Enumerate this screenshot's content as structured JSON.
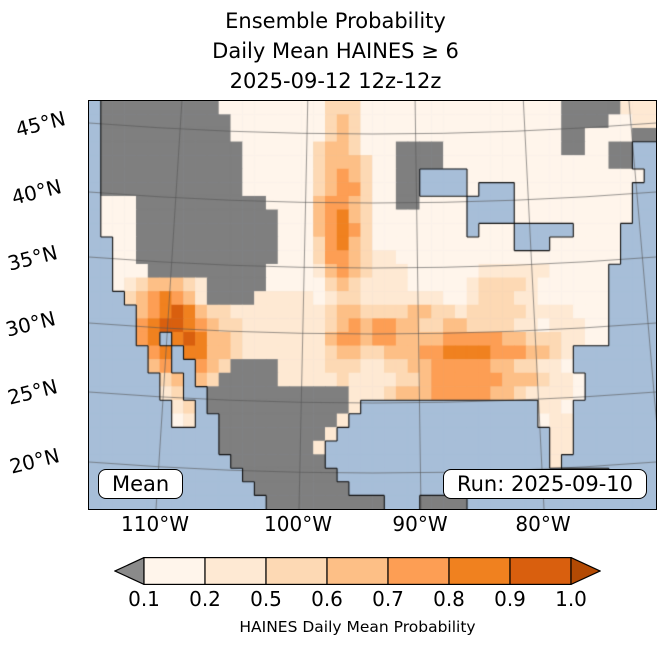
{
  "title": {
    "line1": "Ensemble Probability",
    "line2": "Daily Mean HAINES ≥ 6",
    "line3": "2025-09-12 12z-12z"
  },
  "map": {
    "lat_labels": [
      "45°N",
      "40°N",
      "35°N",
      "30°N",
      "25°N",
      "20°N"
    ],
    "lon_labels": [
      "110°W",
      "100°W",
      "90°W",
      "80°W"
    ],
    "mean_label": "Mean",
    "run_label": "Run: 2025-09-10"
  },
  "colorbar": {
    "ticks": [
      "0.1",
      "0.2",
      "0.5",
      "0.6",
      "0.7",
      "0.8",
      "0.9",
      "1.0"
    ],
    "label": "HAINES Daily Mean Probability"
  },
  "chart_data": {
    "type": "heatmap",
    "title": "Ensemble Probability — Daily Mean HAINES ≥ 6 — 2025-09-12 12z-12z",
    "variable": "HAINES Daily Mean Probability",
    "statistic": "Mean",
    "run": "2025-09-10",
    "valid": "2025-09-12 12z-12z",
    "region": "CONUS with southern Canada and Mexico, Lambert-conformal style map, approx 20°N–48°N, 122°W–65°W",
    "colorbar_boundaries": [
      0.1,
      0.2,
      0.5,
      0.6,
      0.7,
      0.8,
      0.9,
      1.0
    ],
    "colorbar_colors": [
      "#fff5eb",
      "#fee9d3",
      "#fdd9b4",
      "#fdbf86",
      "#fd9e54",
      "#f0811f",
      "#d95f0e"
    ],
    "under_color": "#8a8a8a",
    "over_color": "#b34a04",
    "masked_meaning": "gray cells = probability below 0.1",
    "grid_legend": {
      ".": "water",
      "g": "< 0.1 (gray mask)",
      "0": "0.1–0.2",
      "1": "0.2–0.5",
      "2": "0.5–0.6",
      "3": "0.6–0.7",
      "4": "0.7–0.8",
      "5": "0.8–0.9",
      "6": "0.9–1.0"
    },
    "palette": {
      ".": "#a7bed8",
      "g": "#7f7f7f",
      "0": "#fff5eb",
      "1": "#fee9d3",
      "2": "#fdd9b4",
      "3": "#fdbf86",
      "4": "#fd9e54",
      "5": "#f0811f",
      "6": "#d95f0e"
    },
    "grid": [
      ".gggggggggg00000000022200000000000000000ggggg111",
      ".ggggggggggg0000000023200000000000000000gggg0011",
      ".ggggggggggg0000000023200000000000000000gg0000gg",
      ".gggggggggggg0000002332000gggg0000000000gg00gg..",
      ".gggggggggggg0000002333200gggg00000000000000gg..",
      ".gggggggggggg0000002343200gg....000000000000000.",
      ".gggggggggggg0000002344200gg....0...0000000000..",
      ".000ggggggggggg00003443200gg0000....0000000000..",
      ".000gggggggggggg0003453200000000....0000000000..",
      ".000gggggggggggg0003454200000000.000.....0000...",
      "..00gggggggggggg00024532000000000000...000000...",
      "..00gggggggggggg00024432110000000000000000000...",
      "..000gggggggggg00001343211100000011111100000....",
      "..01233321ggggg00000232111100000122221000000....",
      "...2345431gggg111110122111111100122211000000....",
      "....3456532211111111233222233221222221111000....",
      "....4566543221111111234344332233222211011100....",
      "....45.5653321111111344344333344444332221100....",
      ".....45.553321111111233223334455554443321.......",
      ".....34..432gggg1111222112233444443322110.......",
      "......23.32ggggg11111211112234444443332110......",
      "......12..gggggggggggg11123334444433211110......",
      ".......12.gggggggggggg1...............110.......",
      ".......01..gggggggggg1................011.......",
      "...........ggggggggg1..................11.......",
      "...........gggggggg1...................11.......",
      "............gggggggg...................1........",
      ".............gggggggg...................gggg....",
      "..............gggggggg....................gggg..",
      "...............gggggggggg...gggg................"
    ],
    "highlights": [
      {
        "area": "Southern Arizona into Sonora (Mexico border)",
        "probability": "0.8–1.0 (darkest core)"
      },
      {
        "area": "Nebraska–Kansas plains corridor",
        "probability": "0.6–0.8 vertical band"
      },
      {
        "area": "Oklahoma / North Texas",
        "probability": "0.7–0.9"
      },
      {
        "area": "Lower Mississippi Valley & Deep South (LA, MS, AL, GA, FL panhandle)",
        "probability": "0.7–0.9"
      },
      {
        "area": "Pacific Northwest, Great Basin, interior Mexico, south Texas, upper Midwest patches",
        "probability": "< 0.1 (gray mask)"
      },
      {
        "area": "Remaining CONUS (Midwest, East Coast, Florida peninsula)",
        "probability": "0.1–0.5 pale cream"
      }
    ]
  }
}
